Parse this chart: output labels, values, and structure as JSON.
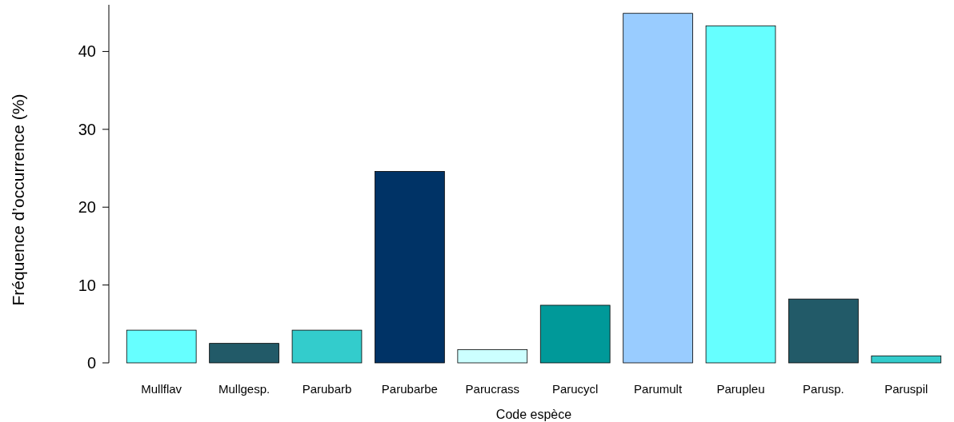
{
  "chart_data": {
    "type": "bar",
    "xlabel": "Code espèce",
    "ylabel": "Fréquence d’occurrence (%)",
    "categories": [
      "Mullflav",
      "Mullgesp.",
      "Parubarb",
      "Parubarbe",
      "Parucrass",
      "Parucycl",
      "Parumult",
      "Parupleu",
      "Parusp.",
      "Paruspil"
    ],
    "values": [
      4.2,
      2.5,
      4.2,
      24.6,
      1.7,
      7.4,
      44.9,
      43.3,
      8.2,
      0.9
    ],
    "colors": [
      "#66ffff",
      "#225a68",
      "#33cccc",
      "#003366",
      "#ccffff",
      "#009999",
      "#99ccff",
      "#66ffff",
      "#225a68",
      "#33cccc"
    ],
    "ylim": [
      0,
      46
    ],
    "yticks": [
      0,
      10,
      20,
      30,
      40
    ],
    "grid": false
  }
}
